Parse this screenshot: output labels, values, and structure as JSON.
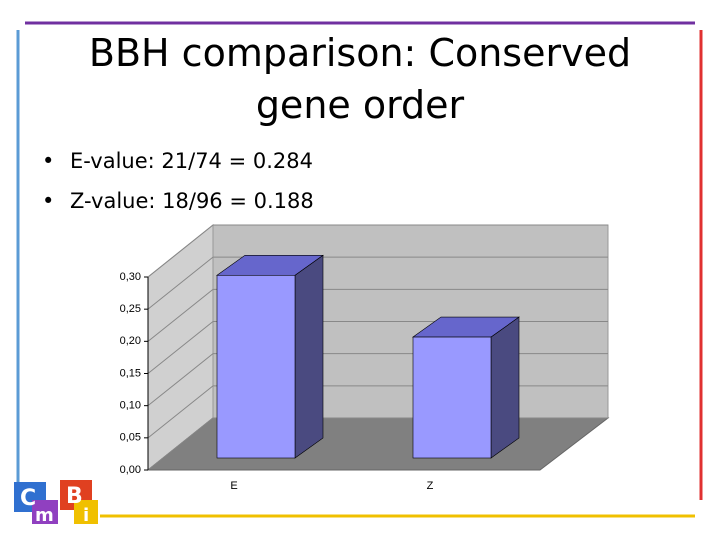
{
  "slide": {
    "title": [
      "BBH comparison: Conserved",
      "gene order"
    ],
    "bullets": [
      "E-value: 21/74 = 0.284",
      "Z-value: 18/96 = 0.188"
    ],
    "logo": [
      "C",
      "m",
      "B",
      "i"
    ]
  },
  "chart_data": {
    "type": "bar3d",
    "categories": [
      "E",
      "Z"
    ],
    "values": [
      0.284,
      0.188
    ],
    "color": "#9999ff",
    "ylim": [
      0,
      0.3
    ],
    "yticks": [
      {
        "value": 0,
        "label": "0,00"
      },
      {
        "value": 0.05,
        "label": "0,05"
      },
      {
        "value": 0.1,
        "label": "0,10"
      },
      {
        "value": 0.15,
        "label": "0,15"
      },
      {
        "value": 0.2,
        "label": "0,20"
      },
      {
        "value": 0.25,
        "label": "0,25"
      },
      {
        "value": 0.3,
        "label": "0,30"
      }
    ],
    "grid": true
  }
}
